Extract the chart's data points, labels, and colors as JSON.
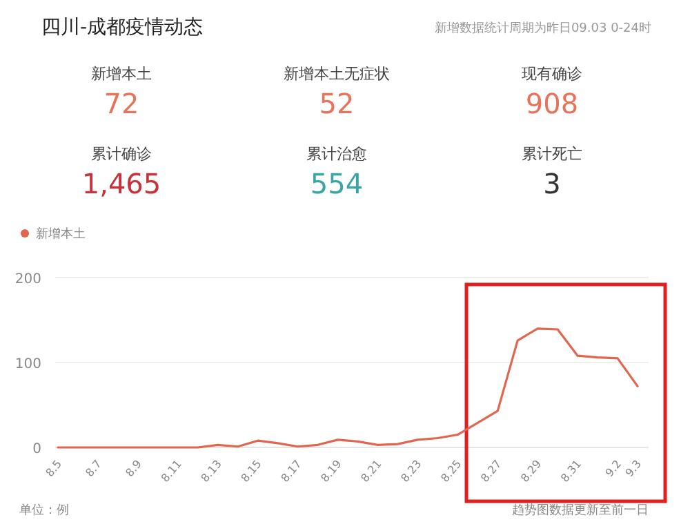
{
  "chart_data": [
    {
      "type": "other",
      "title": "四川-成都疫情动态",
      "subtitle": "新增数据统计周期为昨日09.03 0-24时",
      "annotations": [
        "新增本土",
        "72",
        "新增本土无症状",
        "52",
        "现有确诊",
        "908",
        "累计确诊",
        "1,465",
        "累计治愈",
        "554",
        "累计死亡",
        "3"
      ],
      "colors": [
        "#e8735a",
        "#e8735a",
        "#e8735a",
        "#c8323a",
        "#3aa5a5",
        "#333333"
      ]
    },
    {
      "type": "line",
      "categories": [
        "8.5",
        null,
        "8.7",
        null,
        "8.9",
        null,
        "8.11",
        null,
        "8.13",
        null,
        "8.15",
        null,
        "8.17",
        null,
        "8.19",
        null,
        "8.21",
        null,
        "8.23",
        null,
        "8.25",
        null,
        "8.27",
        null,
        "8.29",
        null,
        "8.31",
        null,
        "9.2",
        "9.3"
      ],
      "series": [
        {
          "name": "新增本土",
          "color": "#e0664f",
          "values": [
            0,
            0,
            0,
            0,
            0,
            0,
            0,
            0,
            3,
            1,
            8,
            5,
            1,
            3,
            9,
            7,
            3,
            4,
            9,
            11,
            15,
            29,
            43,
            126,
            140,
            139,
            108,
            106,
            105,
            72
          ]
        }
      ],
      "ylim": [
        0,
        200
      ],
      "yticks": [
        0,
        100,
        200
      ],
      "grid": "y",
      "legend": "top left",
      "marker": "none",
      "line_style": "solid",
      "annotations": [
        "单位：例",
        "趋势图数据更新至前一日"
      ]
    }
  ]
}
